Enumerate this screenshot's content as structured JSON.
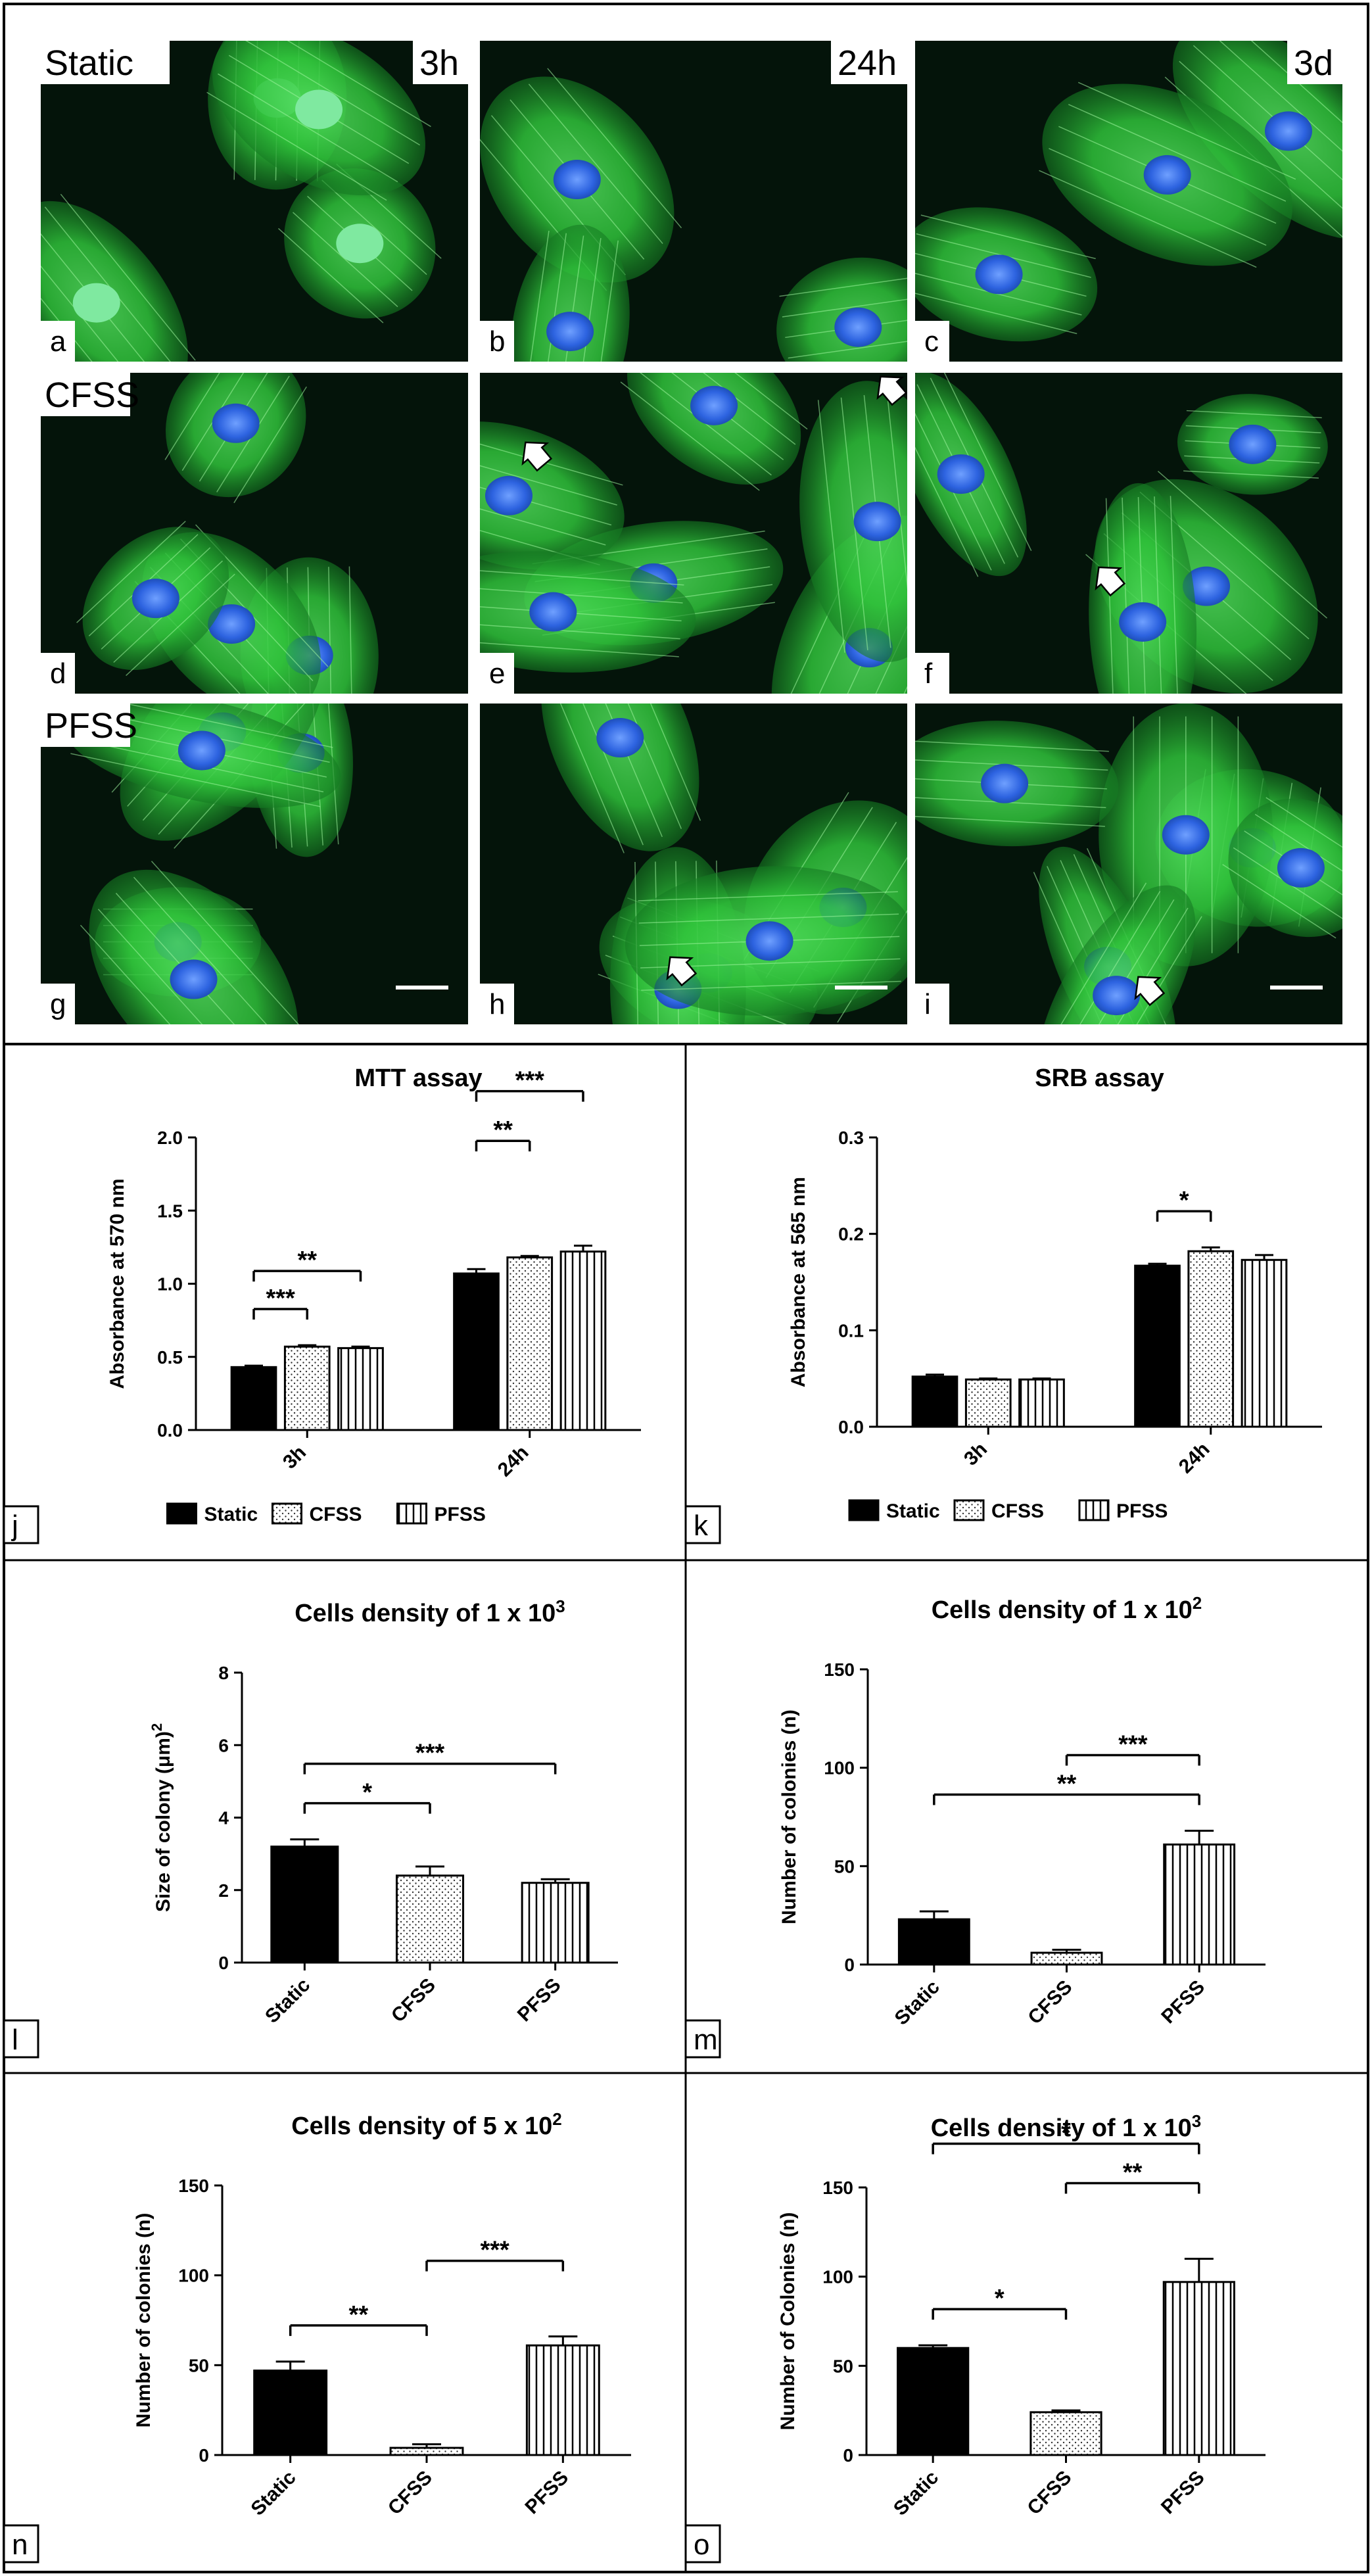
{
  "micrograph": {
    "rows": [
      {
        "label": "Static",
        "panels": [
          "a",
          "b",
          "c"
        ]
      },
      {
        "label": "CFSS",
        "panels": [
          "d",
          "e",
          "f"
        ]
      },
      {
        "label": "PFSS",
        "panels": [
          "g",
          "h",
          "i"
        ]
      }
    ],
    "time_labels": [
      "3h",
      "24h",
      "3d"
    ],
    "colors": {
      "actin": "#2fc23a",
      "nuclei": "#2d63e0",
      "background": "#04140a"
    }
  },
  "legend": {
    "items": [
      "Static",
      "CFSS",
      "PFSS"
    ]
  },
  "chart_data": [
    {
      "id": "j",
      "type": "bar",
      "title": "MTT assay",
      "xlabel": "",
      "ylabel": "Absorbance at 570 nm",
      "categories": [
        "3h",
        "24h"
      ],
      "ylim": [
        0,
        2.0
      ],
      "yticks": [
        "0.0",
        "0.5",
        "1.0",
        "1.5",
        "2.0"
      ],
      "series": [
        {
          "name": "Static",
          "values": [
            0.43,
            1.07
          ],
          "errors": [
            0.01,
            0.03
          ]
        },
        {
          "name": "CFSS",
          "values": [
            0.57,
            1.18
          ],
          "errors": [
            0.01,
            0.01
          ]
        },
        {
          "name": "PFSS",
          "values": [
            0.56,
            1.22
          ],
          "errors": [
            0.01,
            0.04
          ]
        }
      ],
      "significance": [
        {
          "group": "3h",
          "from": "Static",
          "to": "CFSS",
          "label": "***"
        },
        {
          "group": "3h",
          "from": "Static",
          "to": "PFSS",
          "label": "**"
        },
        {
          "group": "24h",
          "from": "Static",
          "to": "CFSS",
          "label": "**"
        },
        {
          "group": "24h",
          "from": "Static",
          "to": "PFSS",
          "label": "***"
        }
      ],
      "legend": "bottom"
    },
    {
      "id": "k",
      "type": "bar",
      "title": "SRB assay",
      "xlabel": "",
      "ylabel": "Absorbance at 565 nm",
      "categories": [
        "3h",
        "24h"
      ],
      "ylim": [
        0,
        0.3
      ],
      "yticks": [
        "0.0",
        "0.1",
        "0.2",
        "0.3"
      ],
      "series": [
        {
          "name": "Static",
          "values": [
            0.052,
            0.167
          ],
          "errors": [
            0.002,
            0.002
          ]
        },
        {
          "name": "CFSS",
          "values": [
            0.049,
            0.182
          ],
          "errors": [
            0.001,
            0.004
          ]
        },
        {
          "name": "PFSS",
          "values": [
            0.049,
            0.173
          ],
          "errors": [
            0.001,
            0.005
          ]
        }
      ],
      "significance": [
        {
          "group": "24h",
          "from": "Static",
          "to": "CFSS",
          "label": "*"
        }
      ],
      "legend": "bottom"
    },
    {
      "id": "l",
      "type": "bar",
      "title": "Cells density of 1 x 10",
      "title_sup": "3",
      "xlabel": "",
      "ylabel": "Size of colony (μm)",
      "ylabel_sup": "2",
      "categories": [
        "Static",
        "CFSS",
        "PFSS"
      ],
      "ylim": [
        0,
        8
      ],
      "yticks": [
        "0",
        "2",
        "4",
        "6",
        "8"
      ],
      "values": [
        3.2,
        2.4,
        2.2
      ],
      "errors": [
        0.2,
        0.25,
        0.1
      ],
      "significance": [
        {
          "from": "Static",
          "to": "CFSS",
          "label": "*"
        },
        {
          "from": "Static",
          "to": "PFSS",
          "label": "***"
        }
      ]
    },
    {
      "id": "m",
      "type": "bar",
      "title": "Cells density of 1 x 10",
      "title_sup": "2",
      "xlabel": "",
      "ylabel": "Number of colonies (n)",
      "categories": [
        "Static",
        "CFSS",
        "PFSS"
      ],
      "ylim": [
        0,
        150
      ],
      "yticks": [
        "0",
        "50",
        "100",
        "150"
      ],
      "values": [
        23,
        6,
        61
      ],
      "errors": [
        4,
        1.5,
        7
      ],
      "significance": [
        {
          "from": "Static",
          "to": "PFSS",
          "label": "**"
        },
        {
          "from": "CFSS",
          "to": "PFSS",
          "label": "***"
        }
      ]
    },
    {
      "id": "n",
      "type": "bar",
      "title": "Cells density of 5 x 10",
      "title_sup": "2",
      "xlabel": "",
      "ylabel": "Number of colonies (n)",
      "categories": [
        "Static",
        "CFSS",
        "PFSS"
      ],
      "ylim": [
        0,
        150
      ],
      "yticks": [
        "0",
        "50",
        "100",
        "150"
      ],
      "values": [
        47,
        4,
        61
      ],
      "errors": [
        5,
        2,
        5
      ],
      "significance": [
        {
          "from": "Static",
          "to": "CFSS",
          "label": "**"
        },
        {
          "from": "CFSS",
          "to": "PFSS",
          "label": "***"
        }
      ]
    },
    {
      "id": "o",
      "type": "bar",
      "title": "Cells density of 1 x 10",
      "title_sup": "3",
      "xlabel": "",
      "ylabel": "Number of Colonies (n)",
      "categories": [
        "Static",
        "CFSS",
        "PFSS"
      ],
      "ylim": [
        0,
        150
      ],
      "yticks": [
        "0",
        "50",
        "100",
        "150"
      ],
      "values": [
        60,
        24,
        97
      ],
      "errors": [
        1.5,
        1,
        13
      ],
      "significance": [
        {
          "from": "Static",
          "to": "CFSS",
          "label": "*"
        },
        {
          "from": "CFSS",
          "to": "PFSS",
          "label": "**"
        },
        {
          "from": "Static",
          "to": "PFSS",
          "label": "*"
        }
      ]
    }
  ]
}
